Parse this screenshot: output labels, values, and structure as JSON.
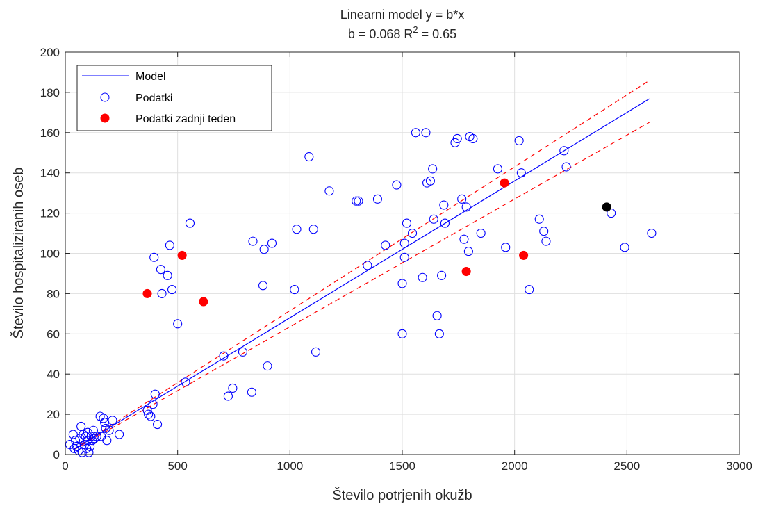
{
  "chart_data": {
    "type": "scatter",
    "title_line1": "Linearni model y = b*x",
    "title_line2_prefix": "b = 0.068 R",
    "title_line2_sup": "2",
    "title_line2_suffix": " = 0.65",
    "xlabel": "Število potrjenih okužb",
    "ylabel": "Število hospitaliziranih oseb",
    "xlim": [
      0,
      3000
    ],
    "ylim": [
      0,
      200
    ],
    "xticks": [
      0,
      500,
      1000,
      1500,
      2000,
      2500,
      3000
    ],
    "yticks": [
      0,
      20,
      40,
      60,
      80,
      100,
      120,
      140,
      160,
      180,
      200
    ],
    "grid": true,
    "legend_position": "top-left",
    "legend": [
      {
        "label": "Model",
        "kind": "line",
        "color": "#0000ff"
      },
      {
        "label": "Podatki",
        "kind": "open-circle",
        "color": "#0000ff"
      },
      {
        "label": "Podatki zadnji teden",
        "kind": "filled-circle",
        "color": "#ff0000"
      }
    ],
    "model": {
      "slope": 0.068,
      "x_range": [
        40,
        2600
      ],
      "color": "#0000ff"
    },
    "confidence_band": {
      "lower_slope": 0.0635,
      "upper_slope": 0.0715,
      "x_range": [
        40,
        2600
      ],
      "color": "#ff0000",
      "style": "dashed"
    },
    "series": [
      {
        "name": "Podatki",
        "color": "#0000ff",
        "marker": "open-circle",
        "points": [
          [
            20,
            5
          ],
          [
            35,
            10
          ],
          [
            40,
            3
          ],
          [
            45,
            7
          ],
          [
            50,
            4
          ],
          [
            60,
            2
          ],
          [
            65,
            8
          ],
          [
            70,
            14
          ],
          [
            75,
            1
          ],
          [
            80,
            10
          ],
          [
            85,
            5
          ],
          [
            90,
            9
          ],
          [
            95,
            3
          ],
          [
            100,
            7
          ],
          [
            100,
            11
          ],
          [
            105,
            1
          ],
          [
            110,
            4
          ],
          [
            115,
            9
          ],
          [
            120,
            7
          ],
          [
            125,
            12
          ],
          [
            130,
            8
          ],
          [
            140,
            9
          ],
          [
            155,
            19
          ],
          [
            160,
            9
          ],
          [
            170,
            18
          ],
          [
            175,
            16
          ],
          [
            180,
            13
          ],
          [
            185,
            7
          ],
          [
            195,
            12
          ],
          [
            210,
            17
          ],
          [
            240,
            10
          ],
          [
            365,
            22
          ],
          [
            370,
            20
          ],
          [
            380,
            19
          ],
          [
            390,
            25
          ],
          [
            395,
            98
          ],
          [
            400,
            30
          ],
          [
            410,
            15
          ],
          [
            425,
            92
          ],
          [
            430,
            80
          ],
          [
            455,
            89
          ],
          [
            465,
            104
          ],
          [
            475,
            82
          ],
          [
            500,
            65
          ],
          [
            535,
            36
          ],
          [
            555,
            115
          ],
          [
            705,
            49
          ],
          [
            725,
            29
          ],
          [
            745,
            33
          ],
          [
            790,
            51
          ],
          [
            830,
            31
          ],
          [
            835,
            106
          ],
          [
            880,
            84
          ],
          [
            885,
            102
          ],
          [
            900,
            44
          ],
          [
            920,
            105
          ],
          [
            1020,
            82
          ],
          [
            1030,
            112
          ],
          [
            1085,
            148
          ],
          [
            1105,
            112
          ],
          [
            1115,
            51
          ],
          [
            1175,
            131
          ],
          [
            1295,
            126
          ],
          [
            1305,
            126
          ],
          [
            1345,
            94
          ],
          [
            1390,
            127
          ],
          [
            1425,
            104
          ],
          [
            1475,
            134
          ],
          [
            1500,
            60
          ],
          [
            1500,
            85
          ],
          [
            1510,
            105
          ],
          [
            1510,
            98
          ],
          [
            1520,
            115
          ],
          [
            1545,
            110
          ],
          [
            1560,
            160
          ],
          [
            1590,
            88
          ],
          [
            1605,
            160
          ],
          [
            1610,
            135
          ],
          [
            1625,
            136
          ],
          [
            1635,
            142
          ],
          [
            1640,
            117
          ],
          [
            1655,
            69
          ],
          [
            1665,
            60
          ],
          [
            1675,
            89
          ],
          [
            1685,
            124
          ],
          [
            1690,
            115
          ],
          [
            1735,
            155
          ],
          [
            1745,
            157
          ],
          [
            1765,
            127
          ],
          [
            1775,
            107
          ],
          [
            1785,
            123
          ],
          [
            1795,
            101
          ],
          [
            1800,
            158
          ],
          [
            1815,
            157
          ],
          [
            1850,
            110
          ],
          [
            1925,
            142
          ],
          [
            1960,
            103
          ],
          [
            2020,
            156
          ],
          [
            2030,
            140
          ],
          [
            2065,
            82
          ],
          [
            2110,
            117
          ],
          [
            2130,
            111
          ],
          [
            2140,
            106
          ],
          [
            2220,
            151
          ],
          [
            2230,
            143
          ],
          [
            2430,
            120
          ],
          [
            2490,
            103
          ],
          [
            2610,
            110
          ]
        ]
      },
      {
        "name": "Podatki zadnji teden",
        "color": "#ff0000",
        "marker": "filled-circle",
        "points": [
          [
            365,
            80
          ],
          [
            520,
            99
          ],
          [
            615,
            76
          ],
          [
            1785,
            91
          ],
          [
            1955,
            135
          ],
          [
            2040,
            99
          ]
        ]
      },
      {
        "color": "#000000",
        "marker": "filled-circle",
        "points": [
          [
            2410,
            123
          ]
        ]
      }
    ]
  }
}
